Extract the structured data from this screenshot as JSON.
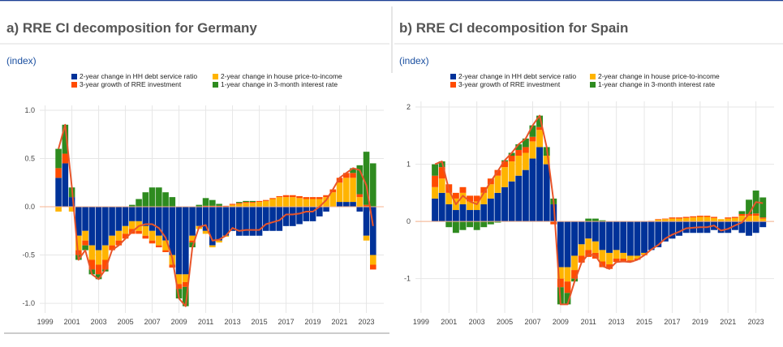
{
  "chart_data": [
    {
      "type": "bar",
      "title": "a) RRE CI decomposition for Germany",
      "subtitle": "(index)",
      "x": [
        2000,
        2000.5,
        2001,
        2001.5,
        2002,
        2002.5,
        2003,
        2003.5,
        2004,
        2004.5,
        2005,
        2005.5,
        2006,
        2006.5,
        2007,
        2007.5,
        2008,
        2008.5,
        2009,
        2009.5,
        2010,
        2010.5,
        2011,
        2011.5,
        2012,
        2012.5,
        2013,
        2013.5,
        2014,
        2014.5,
        2015,
        2015.5,
        2016,
        2016.5,
        2017,
        2017.5,
        2018,
        2018.5,
        2019,
        2019.5,
        2020,
        2020.5,
        2021,
        2021.5,
        2022,
        2022.5,
        2023,
        2023.5
      ],
      "xlim": [
        1998.6,
        2024.3
      ],
      "xticks": [
        1999,
        2001,
        2003,
        2005,
        2007,
        2009,
        2011,
        2013,
        2015,
        2017,
        2019,
        2021,
        2023
      ],
      "ylim": [
        -1.1,
        1.05
      ],
      "yticks": [
        {
          "value": -1,
          "label": "-1.0"
        },
        -0.5,
        {
          "value": 0,
          "label": "0.0"
        },
        0.5,
        {
          "value": 1,
          "label": "1.0"
        }
      ],
      "grid": true,
      "stacked": true,
      "series": [
        {
          "name": "2-year change in HH debt service ratio",
          "color": "#003299",
          "values": [
            0.3,
            0.45,
            0.1,
            -0.3,
            -0.25,
            -0.4,
            -0.45,
            -0.4,
            -0.3,
            -0.25,
            -0.2,
            -0.15,
            -0.15,
            -0.2,
            -0.25,
            -0.3,
            -0.35,
            -0.5,
            -0.7,
            -0.7,
            -0.3,
            -0.2,
            -0.25,
            -0.4,
            -0.35,
            -0.3,
            -0.25,
            -0.3,
            -0.3,
            -0.3,
            -0.3,
            -0.25,
            -0.25,
            -0.25,
            -0.2,
            -0.2,
            -0.18,
            -0.15,
            -0.15,
            -0.1,
            -0.05,
            0,
            0.05,
            0.05,
            0.05,
            -0.05,
            -0.3,
            -0.5
          ]
        },
        {
          "name": "2-year change in house price-to-income",
          "color": "#ffb400",
          "values": [
            -0.05,
            0,
            -0.05,
            -0.15,
            -0.1,
            -0.15,
            -0.15,
            -0.15,
            -0.1,
            -0.1,
            -0.08,
            -0.08,
            -0.1,
            -0.1,
            -0.1,
            -0.1,
            -0.1,
            -0.1,
            -0.1,
            -0.08,
            -0.05,
            -0.03,
            -0.03,
            -0.02,
            -0.02,
            -0.01,
            0.02,
            0.03,
            0.04,
            0.04,
            0.05,
            0.06,
            0.08,
            0.1,
            0.1,
            0.1,
            0.09,
            0.08,
            0.08,
            0.08,
            0.1,
            0.15,
            0.2,
            0.25,
            0.25,
            0.1,
            -0.05,
            -0.1
          ]
        },
        {
          "name": "3-year growth of RRE investment",
          "color": "#ff4b00",
          "values": [
            0.1,
            0.1,
            0,
            -0.05,
            -0.05,
            -0.1,
            -0.1,
            -0.1,
            -0.05,
            -0.05,
            -0.05,
            -0.05,
            -0.03,
            -0.03,
            -0.03,
            -0.02,
            -0.02,
            -0.03,
            -0.05,
            -0.05,
            -0.02,
            0,
            0.01,
            0.01,
            0.01,
            0.01,
            0.01,
            0.01,
            0.01,
            0.01,
            0.01,
            0.01,
            0.01,
            0.01,
            0.02,
            0.02,
            0.02,
            0.02,
            0.02,
            0.02,
            0.02,
            0.03,
            0.05,
            0.05,
            0.05,
            0.03,
            0.02,
            -0.05
          ]
        },
        {
          "name": "1-year change in 3-month interest rate",
          "color": "#2e8b1f",
          "values": [
            0.2,
            0.3,
            0.1,
            -0.05,
            -0.05,
            -0.05,
            -0.05,
            -0.02,
            0,
            0,
            0,
            0.02,
            0.08,
            0.15,
            0.2,
            0.2,
            0.15,
            0.1,
            -0.1,
            -0.2,
            -0.05,
            0.02,
            0.08,
            0.06,
            0.02,
            0,
            0,
            0.01,
            0.01,
            0.01,
            0,
            0,
            0,
            0,
            0,
            0,
            0,
            0,
            0,
            0,
            0,
            0,
            0,
            0,
            0.05,
            0.3,
            0.55,
            0.45
          ]
        },
        {
          "type": "line",
          "color": "#e8552a",
          "values": [
            0.6,
            0.85,
            0.2,
            -0.55,
            -0.45,
            -0.7,
            -0.75,
            -0.65,
            -0.45,
            -0.4,
            -0.33,
            -0.26,
            -0.2,
            -0.18,
            -0.18,
            -0.22,
            -0.32,
            -0.53,
            -0.95,
            -1.03,
            -0.42,
            -0.21,
            -0.19,
            -0.35,
            -0.34,
            -0.3,
            -0.22,
            -0.25,
            -0.24,
            -0.24,
            -0.24,
            -0.18,
            -0.16,
            -0.14,
            -0.08,
            -0.08,
            -0.07,
            -0.05,
            -0.05,
            0,
            0.07,
            0.18,
            0.3,
            0.35,
            0.4,
            0.38,
            0.22,
            -0.2
          ]
        }
      ]
    },
    {
      "type": "bar",
      "title": "b) RRE CI decomposition for Spain",
      "subtitle": "(index)",
      "x": [
        2000,
        2000.5,
        2001,
        2001.5,
        2002,
        2002.5,
        2003,
        2003.5,
        2004,
        2004.5,
        2005,
        2005.5,
        2006,
        2006.5,
        2007,
        2007.5,
        2008,
        2008.5,
        2009,
        2009.5,
        2010,
        2010.5,
        2011,
        2011.5,
        2012,
        2012.5,
        2013,
        2013.5,
        2014,
        2014.5,
        2015,
        2015.5,
        2016,
        2016.5,
        2017,
        2017.5,
        2018,
        2018.5,
        2019,
        2019.5,
        2020,
        2020.5,
        2021,
        2021.5,
        2022,
        2022.5,
        2023,
        2023.5
      ],
      "xlim": [
        1998.6,
        2024.3
      ],
      "xticks": [
        1999,
        2001,
        2003,
        2005,
        2007,
        2009,
        2011,
        2013,
        2015,
        2017,
        2019,
        2021,
        2023
      ],
      "ylim": [
        -1.6,
        2.1
      ],
      "yticks": [
        -1,
        0,
        1,
        2
      ],
      "grid": true,
      "stacked": true,
      "series": [
        {
          "name": "2-year change in HH debt service ratio",
          "color": "#003299",
          "values": [
            0.4,
            0.5,
            0.3,
            0.2,
            0.3,
            0.2,
            0.2,
            0.3,
            0.4,
            0.5,
            0.6,
            0.7,
            0.8,
            0.9,
            1.1,
            1.3,
            1.0,
            0.3,
            -0.8,
            -0.8,
            -0.6,
            -0.4,
            -0.3,
            -0.35,
            -0.5,
            -0.55,
            -0.5,
            -0.55,
            -0.6,
            -0.6,
            -0.55,
            -0.5,
            -0.45,
            -0.35,
            -0.3,
            -0.25,
            -0.2,
            -0.2,
            -0.2,
            -0.2,
            -0.15,
            -0.2,
            -0.2,
            -0.15,
            -0.2,
            -0.25,
            -0.2,
            -0.1
          ]
        },
        {
          "name": "2-year change in house price-to-income",
          "color": "#ffb400",
          "values": [
            0.2,
            0.25,
            0.2,
            0.2,
            0.2,
            0.15,
            0.15,
            0.2,
            0.25,
            0.3,
            0.35,
            0.35,
            0.35,
            0.3,
            0.3,
            0.3,
            0.15,
            0,
            -0.2,
            -0.25,
            -0.25,
            -0.2,
            -0.2,
            -0.2,
            -0.2,
            -0.2,
            -0.15,
            -0.1,
            -0.08,
            -0.05,
            -0.03,
            0,
            0.03,
            0.04,
            0.05,
            0.05,
            0.06,
            0.07,
            0.08,
            0.08,
            0.06,
            0.04,
            0.05,
            0.06,
            0.1,
            0.1,
            0.1,
            0.05
          ]
        },
        {
          "name": "3-year growth of RRE investment",
          "color": "#ff4b00",
          "values": [
            0.2,
            0.2,
            0.15,
            0.1,
            0.1,
            0.1,
            0.1,
            0.1,
            0.1,
            0.1,
            0.1,
            0.1,
            0.1,
            0.1,
            0.08,
            0.05,
            0,
            -0.05,
            -0.15,
            -0.2,
            -0.15,
            -0.12,
            -0.12,
            -0.1,
            -0.1,
            -0.08,
            -0.06,
            -0.05,
            -0.03,
            -0.02,
            -0.01,
            0.01,
            0.01,
            0.01,
            0.02,
            0.02,
            0.02,
            0.02,
            0.02,
            0.02,
            0.02,
            0,
            0.02,
            0.02,
            0.03,
            0.03,
            0.04,
            0.02
          ]
        },
        {
          "name": "1-year change in 3-month interest rate",
          "color": "#2e8b1f",
          "values": [
            0.2,
            0.1,
            -0.1,
            -0.2,
            -0.15,
            -0.1,
            -0.15,
            -0.1,
            -0.05,
            -0.02,
            0.02,
            0.05,
            0.1,
            0.15,
            0.2,
            0.2,
            0.15,
            0.1,
            -0.3,
            -0.2,
            -0.05,
            0,
            0.05,
            0.05,
            0.02,
            0,
            0,
            0,
            0,
            0,
            0,
            0,
            0,
            0,
            0,
            0,
            0,
            0,
            0,
            0,
            0,
            0,
            0,
            0,
            0.05,
            0.25,
            0.4,
            0.35
          ]
        },
        {
          "type": "line",
          "color": "#e8552a",
          "values": [
            1.0,
            1.05,
            0.55,
            0.3,
            0.45,
            0.35,
            0.3,
            0.5,
            0.7,
            0.88,
            1.07,
            1.2,
            1.35,
            1.45,
            1.68,
            1.85,
            1.3,
            0.35,
            -1.45,
            -1.45,
            -1.05,
            -0.72,
            -0.57,
            -0.6,
            -0.78,
            -0.83,
            -0.71,
            -0.7,
            -0.71,
            -0.67,
            -0.59,
            -0.49,
            -0.41,
            -0.3,
            -0.23,
            -0.18,
            -0.12,
            -0.11,
            -0.1,
            -0.1,
            -0.07,
            -0.16,
            -0.13,
            -0.07,
            -0.02,
            0.13,
            0.34,
            0.32
          ]
        }
      ]
    }
  ]
}
